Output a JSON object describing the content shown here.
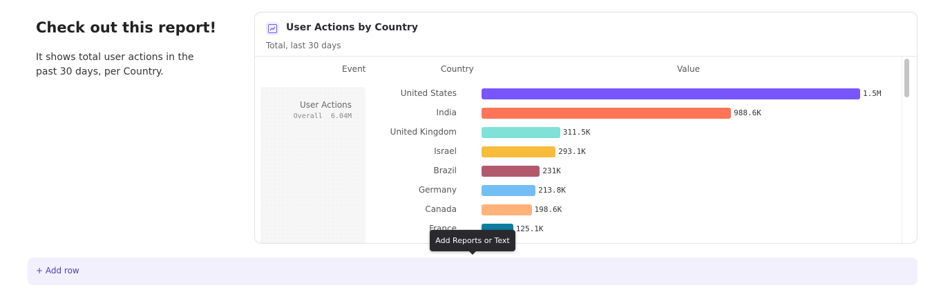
{
  "left": {
    "title": "Check out this report!",
    "description": "It shows total user actions in the past 30 days, per Country."
  },
  "card": {
    "icon": "line-chart-icon",
    "title": "User Actions by Country",
    "subtitle": "Total, last 30 days",
    "columns": {
      "event": "Event",
      "country": "Country",
      "value": "Value"
    },
    "event": {
      "name": "User Actions",
      "overall_label": "Overall",
      "overall_value": "6.04M"
    }
  },
  "chart_data": {
    "type": "bar",
    "orientation": "horizontal",
    "categories": [
      "United States",
      "India",
      "United Kingdom",
      "Israel",
      "Brazil",
      "Germany",
      "Canada",
      "France"
    ],
    "values": [
      1500000,
      988600,
      311500,
      293100,
      231000,
      213800,
      198600,
      125100
    ],
    "labels": [
      "1.5M",
      "988.6K",
      "311.5K",
      "293.1K",
      "231K",
      "213.8K",
      "198.6K",
      "125.1K"
    ],
    "colors": [
      "#7856ff",
      "#ff7557",
      "#80e1d9",
      "#f8bc3b",
      "#b2596e",
      "#72bef4",
      "#ffb27a",
      "#0d7ea0"
    ]
  },
  "add_row": {
    "label": "+ Add row"
  },
  "tooltip": {
    "text": "Add Reports or Text"
  }
}
